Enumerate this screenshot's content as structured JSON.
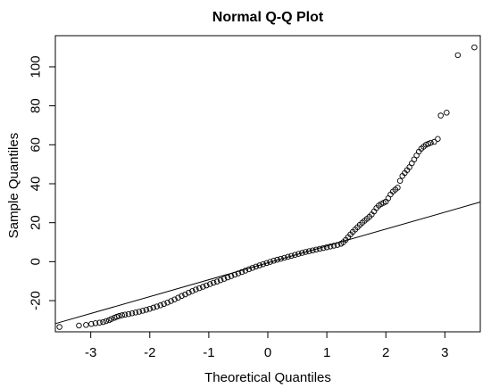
{
  "chart_data": {
    "type": "scatter",
    "title": "Normal Q-Q Plot",
    "xlabel": "Theoretical Quantiles",
    "ylabel": "Sample Quantiles",
    "xlim": [
      -3.6,
      3.6
    ],
    "ylim": [
      -36,
      116
    ],
    "x_ticks": [
      -3,
      -2,
      -1,
      0,
      1,
      2,
      3
    ],
    "x_tick_labels": [
      "-3",
      "-2",
      "-1",
      "0",
      "1",
      "2",
      "3"
    ],
    "y_ticks": [
      -20,
      0,
      20,
      40,
      60,
      80,
      100
    ],
    "y_tick_labels": [
      "-20",
      "0",
      "20",
      "40",
      "60",
      "80",
      "100"
    ],
    "grid": false,
    "reference_line": {
      "x": [
        -3.6,
        3.6
      ],
      "y": [
        -31.8,
        30.6
      ]
    },
    "series": [
      {
        "marker": "open-circle",
        "points": [
          [
            -3.53,
            -33.5
          ],
          [
            -3.2,
            -32.8
          ],
          [
            -3.08,
            -32.5
          ],
          [
            -2.99,
            -32.0
          ],
          [
            -2.92,
            -31.6
          ],
          [
            -2.85,
            -31.3
          ],
          [
            -2.79,
            -31.0
          ],
          [
            -2.74,
            -30.5
          ],
          [
            -2.69,
            -30.0
          ],
          [
            -2.65,
            -29.4
          ],
          [
            -2.6,
            -28.8
          ],
          [
            -2.56,
            -28.3
          ],
          [
            -2.52,
            -27.9
          ],
          [
            -2.47,
            -27.5
          ],
          [
            -2.42,
            -27.2
          ],
          [
            -2.36,
            -26.9
          ],
          [
            -2.3,
            -26.5
          ],
          [
            -2.24,
            -26.1
          ],
          [
            -2.18,
            -25.7
          ],
          [
            -2.12,
            -25.2
          ],
          [
            -2.06,
            -24.7
          ],
          [
            -2.0,
            -24.2
          ],
          [
            -1.94,
            -23.6
          ],
          [
            -1.88,
            -23.0
          ],
          [
            -1.82,
            -22.4
          ],
          [
            -1.76,
            -21.7
          ],
          [
            -1.7,
            -21.0
          ],
          [
            -1.64,
            -20.2
          ],
          [
            -1.58,
            -19.4
          ],
          [
            -1.52,
            -18.5
          ],
          [
            -1.46,
            -17.6
          ],
          [
            -1.4,
            -16.8
          ],
          [
            -1.34,
            -15.9
          ],
          [
            -1.28,
            -15.1
          ],
          [
            -1.22,
            -14.3
          ],
          [
            -1.16,
            -13.6
          ],
          [
            -1.1,
            -12.9
          ],
          [
            -1.04,
            -12.2
          ],
          [
            -0.98,
            -11.5
          ],
          [
            -0.92,
            -10.8
          ],
          [
            -0.86,
            -10.2
          ],
          [
            -0.8,
            -9.5
          ],
          [
            -0.74,
            -8.8
          ],
          [
            -0.68,
            -8.1
          ],
          [
            -0.62,
            -7.4
          ],
          [
            -0.56,
            -6.7
          ],
          [
            -0.5,
            -6.0
          ],
          [
            -0.44,
            -5.3
          ],
          [
            -0.38,
            -4.6
          ],
          [
            -0.32,
            -3.9
          ],
          [
            -0.26,
            -3.2
          ],
          [
            -0.2,
            -2.5
          ],
          [
            -0.14,
            -1.9
          ],
          [
            -0.08,
            -1.3
          ],
          [
            -0.02,
            -0.7
          ],
          [
            0.04,
            -0.1
          ],
          [
            0.1,
            0.5
          ],
          [
            0.16,
            1.0
          ],
          [
            0.22,
            1.5
          ],
          [
            0.28,
            2.0
          ],
          [
            0.34,
            2.5
          ],
          [
            0.4,
            3.0
          ],
          [
            0.46,
            3.5
          ],
          [
            0.52,
            4.0
          ],
          [
            0.58,
            4.5
          ],
          [
            0.64,
            5.0
          ],
          [
            0.7,
            5.4
          ],
          [
            0.76,
            5.8
          ],
          [
            0.82,
            6.2
          ],
          [
            0.88,
            6.6
          ],
          [
            0.94,
            7.0
          ],
          [
            1.0,
            7.4
          ],
          [
            1.06,
            7.8
          ],
          [
            1.12,
            8.2
          ],
          [
            1.18,
            8.6
          ],
          [
            1.24,
            9.2
          ],
          [
            1.28,
            10.0
          ],
          [
            1.32,
            11.2
          ],
          [
            1.36,
            12.6
          ],
          [
            1.4,
            14.0
          ],
          [
            1.44,
            15.3
          ],
          [
            1.48,
            16.5
          ],
          [
            1.52,
            17.7
          ],
          [
            1.56,
            18.9
          ],
          [
            1.6,
            20.0
          ],
          [
            1.64,
            21.0
          ],
          [
            1.68,
            22.0
          ],
          [
            1.72,
            23.0
          ],
          [
            1.76,
            24.2
          ],
          [
            1.8,
            25.8
          ],
          [
            1.84,
            27.5
          ],
          [
            1.88,
            28.8
          ],
          [
            1.92,
            29.6
          ],
          [
            1.96,
            30.2
          ],
          [
            2.0,
            30.8
          ],
          [
            2.04,
            32.5
          ],
          [
            2.08,
            34.5
          ],
          [
            2.12,
            36.0
          ],
          [
            2.16,
            37.0
          ],
          [
            2.2,
            38.0
          ],
          [
            2.24,
            41.5
          ],
          [
            2.28,
            44.0
          ],
          [
            2.32,
            45.5
          ],
          [
            2.36,
            47.0
          ],
          [
            2.4,
            48.5
          ],
          [
            2.44,
            50.5
          ],
          [
            2.48,
            52.5
          ],
          [
            2.52,
            54.5
          ],
          [
            2.56,
            56.5
          ],
          [
            2.6,
            58.0
          ],
          [
            2.64,
            59.0
          ],
          [
            2.68,
            60.0
          ],
          [
            2.72,
            60.5
          ],
          [
            2.76,
            61.0
          ],
          [
            2.82,
            61.5
          ],
          [
            2.88,
            63.0
          ],
          [
            2.93,
            75.0
          ],
          [
            3.03,
            76.5
          ],
          [
            3.22,
            106.0
          ],
          [
            3.5,
            110.0
          ]
        ]
      }
    ]
  }
}
